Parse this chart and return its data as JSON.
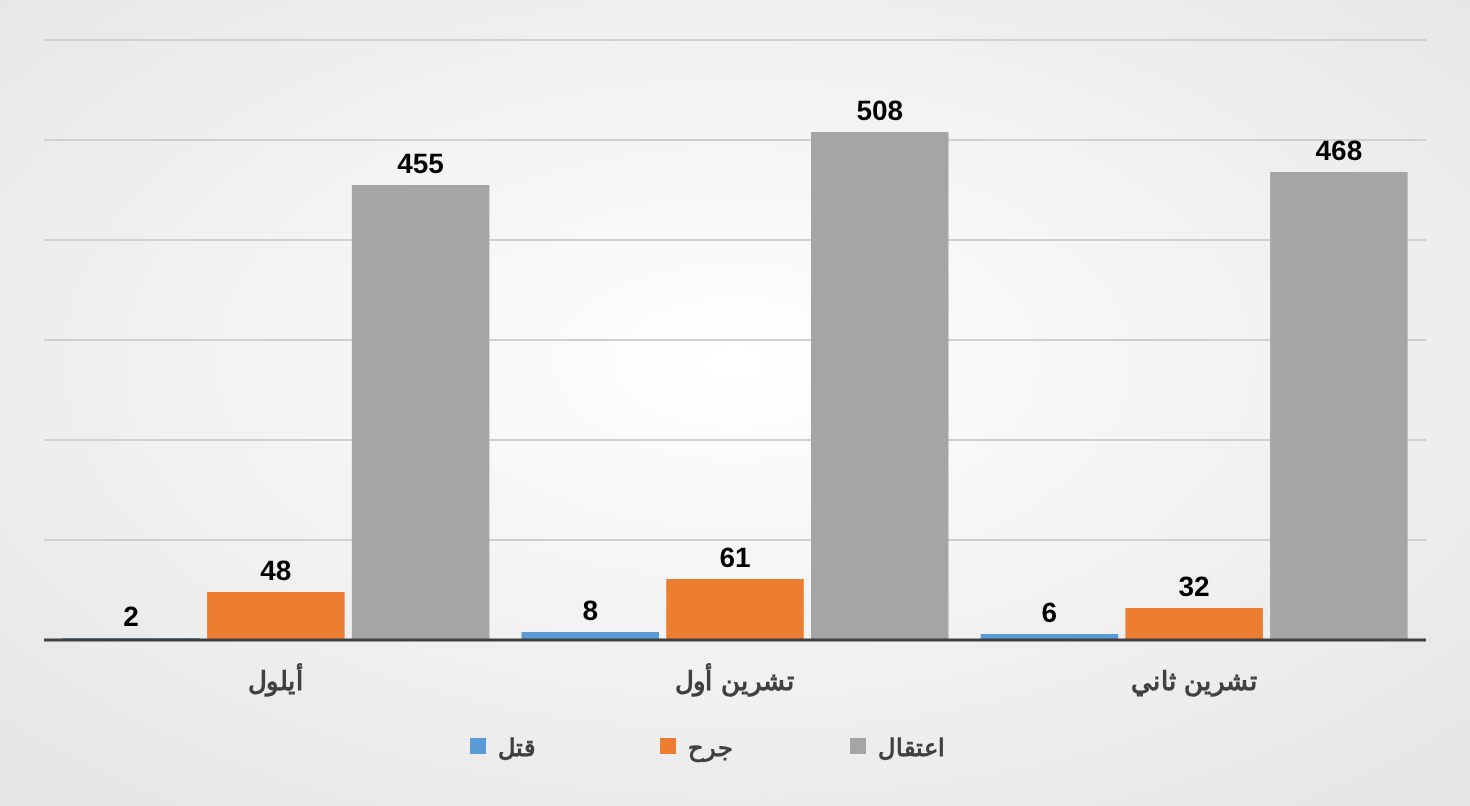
{
  "chart_data": {
    "type": "bar",
    "categories": [
      "أيلول",
      "تشرين أول",
      "تشرين ثاني"
    ],
    "series": [
      {
        "name": "قتل",
        "color": "#5b9bd5",
        "values": [
          2,
          8,
          6
        ]
      },
      {
        "name": "جرح",
        "color": "#ed7d31",
        "values": [
          48,
          61,
          32
        ]
      },
      {
        "name": "اعتقال",
        "color": "#a5a5a5",
        "values": [
          455,
          508,
          468
        ]
      }
    ],
    "ylim": [
      0,
      600
    ],
    "yticks": [
      {
        "value": 0,
        "label": null
      },
      {
        "value": 100,
        "label": null
      },
      {
        "value": 200,
        "label": null
      },
      {
        "value": 300,
        "label": null
      },
      {
        "value": 400,
        "label": null
      },
      {
        "value": 500,
        "label": null
      },
      {
        "value": 600,
        "label": null
      }
    ],
    "tick_labels": "x",
    "grid": "y",
    "data_labels": true,
    "legend": "bottom"
  }
}
